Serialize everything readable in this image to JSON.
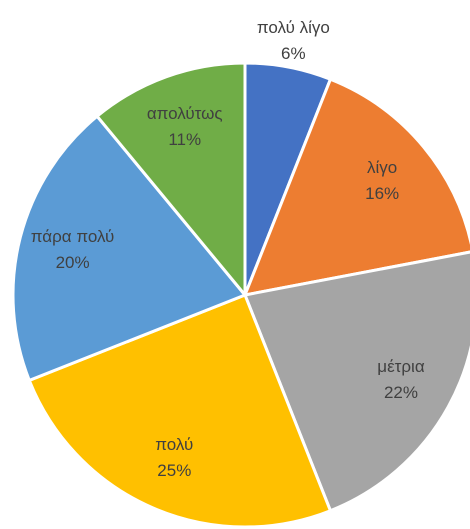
{
  "chart_data": {
    "type": "pie",
    "categories": [
      "πολύ λίγο",
      "λίγο",
      "μέτρια",
      "πολύ",
      "πάρα πολύ",
      "απολύτως"
    ],
    "values": [
      6,
      16,
      22,
      25,
      20,
      11
    ],
    "value_labels": [
      "6%",
      "16%",
      "22%",
      "25%",
      "20%",
      "11%"
    ],
    "colors": [
      "#4472c4",
      "#ed7d31",
      "#a5a5a5",
      "#ffc000",
      "#5b9bd5",
      "#70ad47"
    ]
  }
}
